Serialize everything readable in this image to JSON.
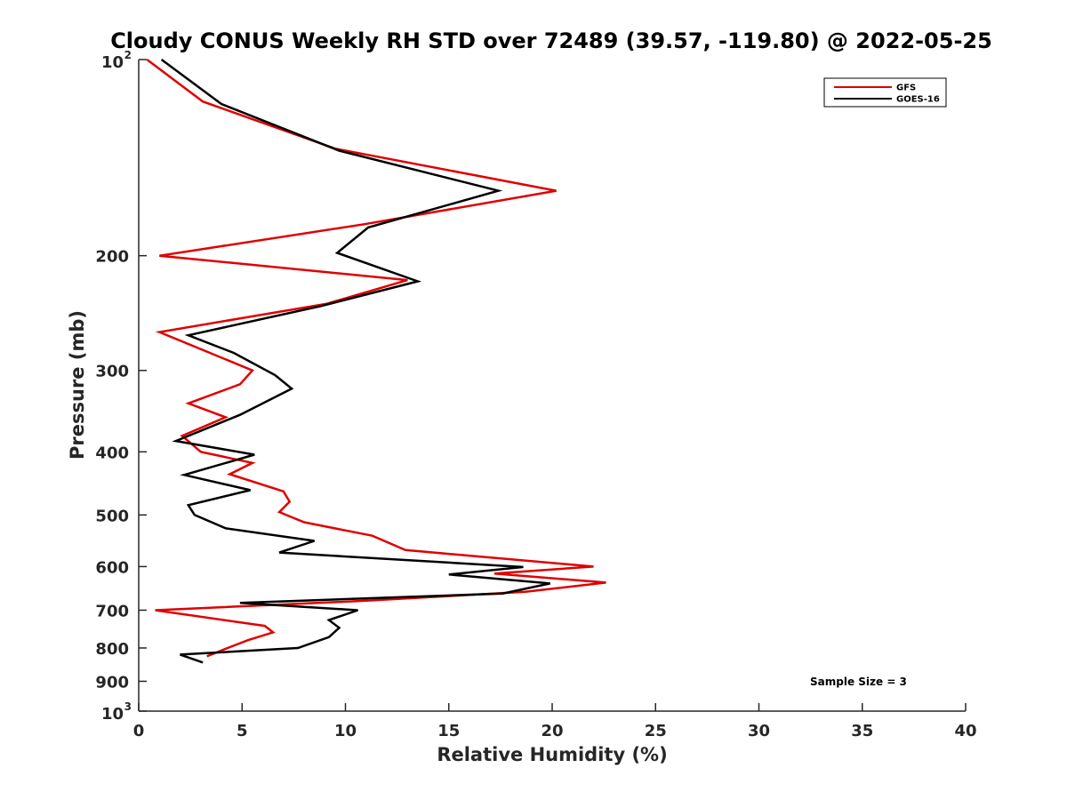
{
  "chart_data": {
    "type": "line",
    "title": "Cloudy CONUS Weekly RH STD over 72489 (39.57, -119.80) @ 2022-05-25",
    "xlabel": "Relative Humidity (%)",
    "ylabel": "Pressure (mb)",
    "xlim": [
      0,
      40
    ],
    "ylim": [
      100,
      1000
    ],
    "y_scale": "log",
    "y_reversed": true,
    "x_ticks": [
      "0",
      "5",
      "10",
      "15",
      "20",
      "25",
      "30",
      "35",
      "40"
    ],
    "y_ticks": [
      {
        "value": 100,
        "label": "10",
        "sup": "2"
      },
      {
        "value": 200,
        "label": "200"
      },
      {
        "value": 300,
        "label": "300"
      },
      {
        "value": 400,
        "label": "400"
      },
      {
        "value": 500,
        "label": "500"
      },
      {
        "value": 600,
        "label": "600"
      },
      {
        "value": 700,
        "label": "700"
      },
      {
        "value": 800,
        "label": "800"
      },
      {
        "value": 900,
        "label": "900"
      },
      {
        "value": 1000,
        "label": "10",
        "sup": "3"
      }
    ],
    "grid": false,
    "legend_position": "top-right",
    "annotation": "Sample Size = 3",
    "series": [
      {
        "name": "GFS",
        "color": "#e00000",
        "points": [
          [
            0.4,
            100
          ],
          [
            3.1,
            116
          ],
          [
            9.5,
            137
          ],
          [
            20.2,
            159
          ],
          [
            10.9,
            179
          ],
          [
            1.0,
            200
          ],
          [
            13.0,
            218
          ],
          [
            9.1,
            237
          ],
          [
            1.0,
            262
          ],
          [
            5.5,
            300
          ],
          [
            4.9,
            315
          ],
          [
            2.4,
            337
          ],
          [
            4.2,
            354
          ],
          [
            2.1,
            378
          ],
          [
            3.0,
            400
          ],
          [
            5.5,
            416
          ],
          [
            4.4,
            433
          ],
          [
            7.0,
            460
          ],
          [
            7.3,
            477
          ],
          [
            6.8,
            495
          ],
          [
            8.0,
            513
          ],
          [
            11.3,
            538
          ],
          [
            12.9,
            566
          ],
          [
            22.0,
            600
          ],
          [
            17.2,
            615
          ],
          [
            22.6,
            635
          ],
          [
            18.7,
            656
          ],
          [
            11.0,
            677
          ],
          [
            0.8,
            700
          ],
          [
            6.1,
            740
          ],
          [
            6.5,
            757
          ],
          [
            5.3,
            778
          ],
          [
            4.3,
            800
          ],
          [
            3.3,
            824
          ]
        ]
      },
      {
        "name": "GOES-16",
        "color": "#000000",
        "points": [
          [
            1.1,
            100
          ],
          [
            4.0,
            117
          ],
          [
            9.7,
            138
          ],
          [
            17.4,
            159
          ],
          [
            11.1,
            181
          ],
          [
            9.6,
            198
          ],
          [
            13.5,
            219
          ],
          [
            8.8,
            239
          ],
          [
            2.4,
            265
          ],
          [
            4.6,
            282
          ],
          [
            6.6,
            305
          ],
          [
            7.4,
            320
          ],
          [
            4.9,
            351
          ],
          [
            1.8,
            385
          ],
          [
            5.6,
            404
          ],
          [
            2.2,
            434
          ],
          [
            5.4,
            458
          ],
          [
            2.4,
            483
          ],
          [
            2.7,
            500
          ],
          [
            4.2,
            524
          ],
          [
            8.5,
            548
          ],
          [
            6.8,
            571
          ],
          [
            18.6,
            601
          ],
          [
            15.0,
            617
          ],
          [
            19.9,
            637
          ],
          [
            17.6,
            660
          ],
          [
            4.9,
            682
          ],
          [
            10.6,
            700
          ],
          [
            9.2,
            725
          ],
          [
            9.7,
            745
          ],
          [
            9.2,
            770
          ],
          [
            7.7,
            800
          ],
          [
            2.0,
            819
          ],
          [
            3.1,
            842
          ]
        ]
      }
    ]
  }
}
